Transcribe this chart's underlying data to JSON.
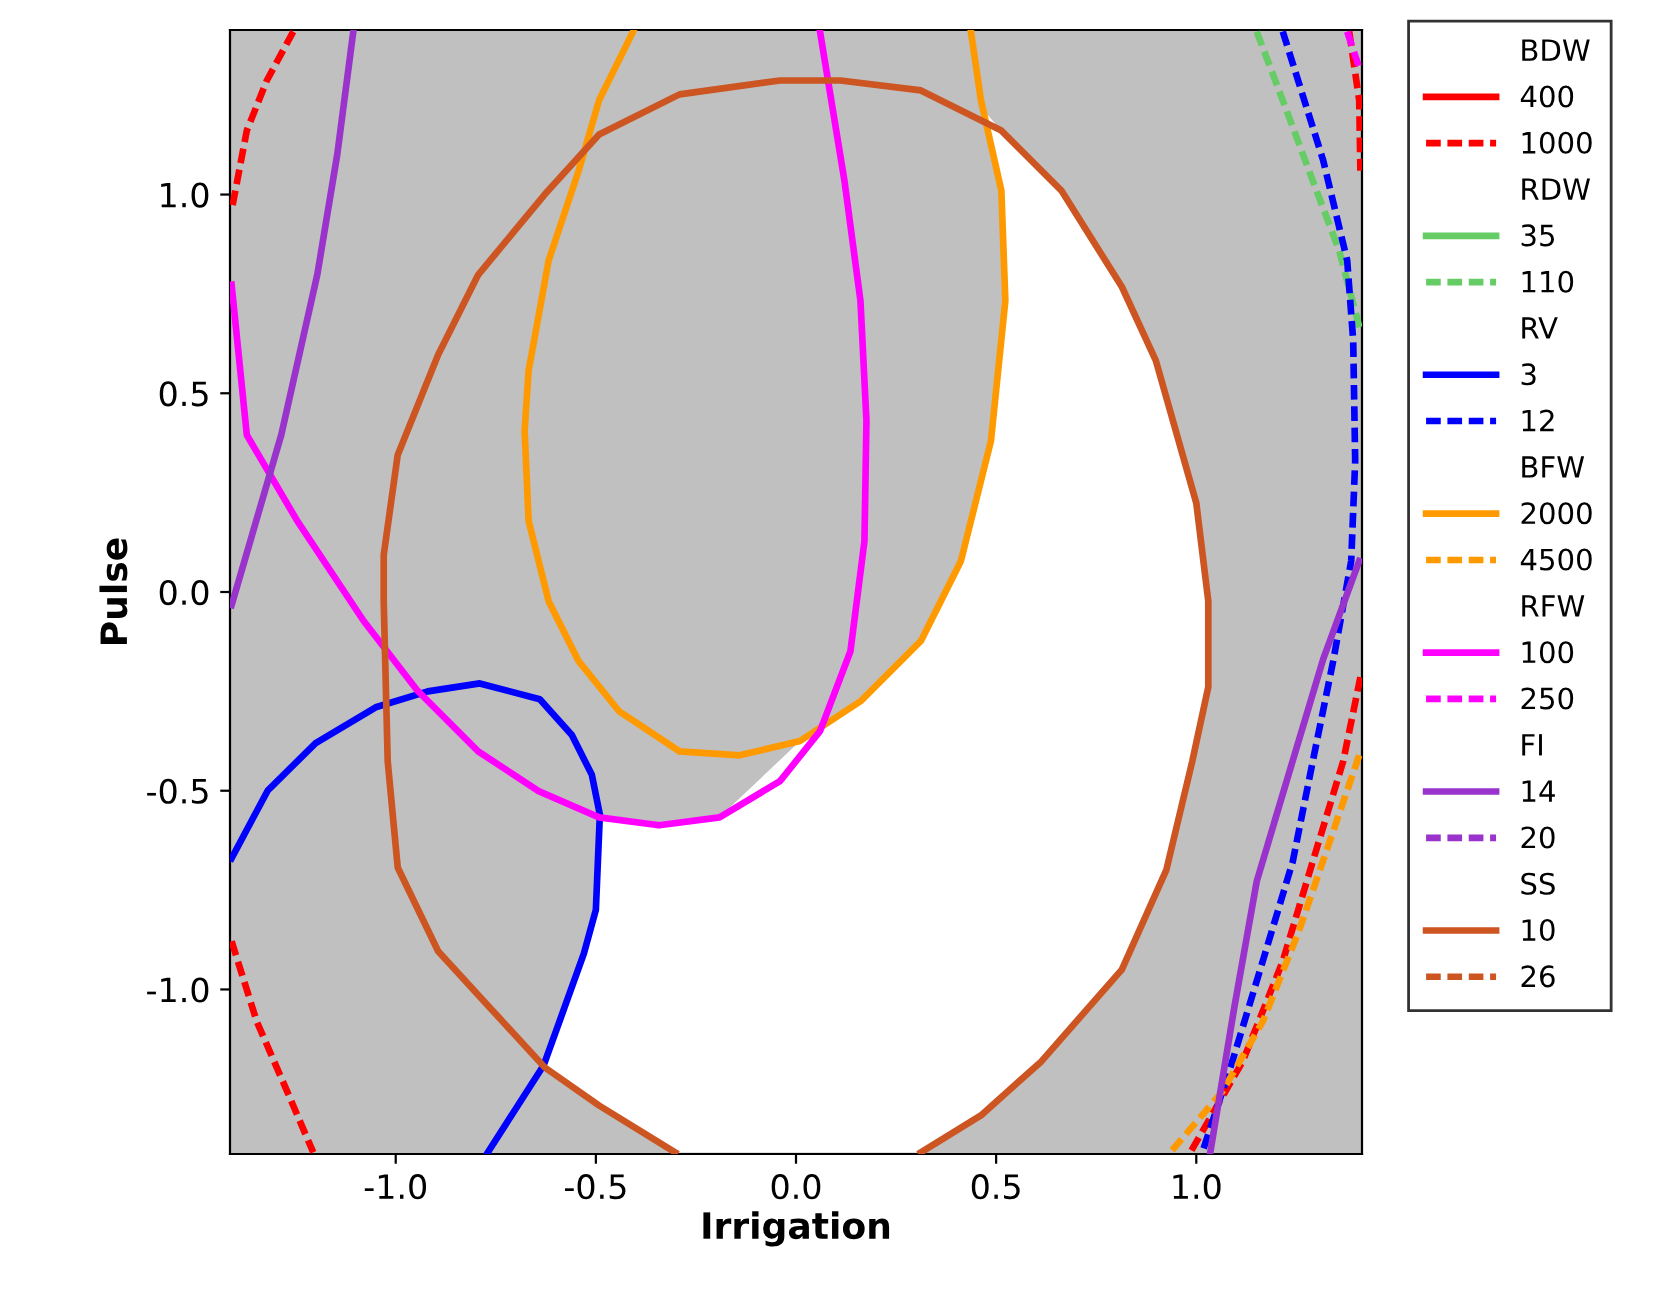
{
  "chart_data": {
    "type": "line",
    "xlabel": "Irrigation",
    "ylabel": "Pulse",
    "xlim": [
      -1.414,
      1.414
    ],
    "ylim": [
      -1.414,
      1.414
    ],
    "xticks": [
      {
        "value": -1.0,
        "label": "-1.0"
      },
      {
        "value": -0.5,
        "label": "-0.5"
      },
      {
        "value": 0.0,
        "label": "0.0"
      },
      {
        "value": 0.5,
        "label": "0.5"
      },
      {
        "value": 1.0,
        "label": "1.0"
      }
    ],
    "yticks": [
      {
        "value": -1.0,
        "label": "-1.0"
      },
      {
        "value": -0.5,
        "label": "-0.5"
      },
      {
        "value": 0.0,
        "label": "0.0"
      },
      {
        "value": 0.5,
        "label": "0.5"
      },
      {
        "value": 1.0,
        "label": "1.0"
      }
    ],
    "grid": false,
    "legend": "right",
    "marker": "none",
    "annotations": [
      "BDW",
      "RDW",
      "RV",
      "BFW",
      "RFW",
      "FI",
      "SS"
    ],
    "series": [
      {
        "type": "area",
        "color": "#ffffff",
        "x": [
          0.47,
          0.513,
          0.523,
          0.487,
          0.412,
          0.312,
          0.161,
          0.01,
          -0.191,
          -0.342,
          -0.492,
          -0.497,
          -0.528,
          -0.633,
          -0.492,
          -0.302,
          0.312,
          0.462,
          0.613,
          0.814,
          0.925,
          0.99,
          1.03,
          1.03,
          1.0,
          0.899,
          0.814,
          0.663,
          0.513
        ],
        "values": [
          1.21,
          1.01,
          0.733,
          0.38,
          0.078,
          -0.123,
          -0.275,
          -0.375,
          -0.567,
          -0.587,
          -0.567,
          -0.8,
          -0.91,
          -1.196,
          -1.292,
          -1.41,
          -1.41,
          -1.317,
          -1.181,
          -0.95,
          -0.7,
          -0.426,
          -0.239,
          -0.023,
          0.224,
          0.582,
          0.768,
          1.01,
          1.161
        ]
      },
      {
        "name": "400",
        "color": "#ff0000",
        "line_style": "solid"
      },
      {
        "name": "1000",
        "color": "#ff0000",
        "line_style": "dashed",
        "x": [
          -1.256,
          -1.322,
          -1.372,
          -1.41,
          null,
          -1.41,
          -1.347,
          -1.271,
          -1.206,
          null,
          1.382,
          1.407,
          1.41,
          null,
          1.41,
          1.367,
          1.291,
          1.216,
          1.116,
          0.985
        ],
        "values": [
          1.41,
          1.287,
          1.161,
          0.96,
          null,
          -0.879,
          -1.081,
          -1.257,
          -1.41,
          null,
          1.41,
          1.237,
          1.06,
          null,
          -0.214,
          -0.426,
          -0.678,
          -0.929,
          -1.181,
          -1.41
        ]
      },
      {
        "name": "35",
        "color": "#66cc66",
        "line_style": "solid"
      },
      {
        "name": "110",
        "color": "#66cc66",
        "line_style": "dashed",
        "x": [
          1.151,
          1.216,
          1.291,
          1.357,
          1.41
        ],
        "values": [
          1.41,
          1.237,
          1.035,
          0.859,
          0.657
        ]
      },
      {
        "name": "3",
        "color": "#0000ff",
        "line_style": "solid",
        "x": [
          -1.41,
          -1.32,
          -1.2,
          -1.05,
          -0.92,
          -0.79,
          -0.64,
          -0.56,
          -0.51,
          -0.49,
          -0.5,
          -0.53,
          -0.63,
          -0.77
        ],
        "values": [
          -0.67,
          -0.5,
          -0.38,
          -0.29,
          -0.25,
          -0.23,
          -0.27,
          -0.36,
          -0.46,
          -0.56,
          -0.8,
          -0.91,
          -1.19,
          -1.41
        ]
      },
      {
        "name": "12",
        "color": "#0000ff",
        "line_style": "dashed",
        "x": [
          1.216,
          1.317,
          1.377,
          1.392,
          1.397,
          1.387,
          1.342,
          1.291,
          1.241,
          1.166,
          1.09,
          1.015
        ],
        "values": [
          1.41,
          1.086,
          0.834,
          0.633,
          0.33,
          0.078,
          -0.174,
          -0.426,
          -0.678,
          -0.929,
          -1.181,
          -1.41
        ]
      },
      {
        "name": "2000",
        "color": "#ff9900",
        "line_style": "solid",
        "x": [
          -0.407,
          -0.492,
          -0.543,
          -0.618,
          -0.668,
          -0.678,
          -0.668,
          -0.618,
          -0.543,
          -0.442,
          -0.291,
          -0.141,
          0.01,
          0.161,
          0.312,
          0.412,
          0.487,
          0.523,
          0.513,
          0.462,
          0.437
        ],
        "values": [
          1.41,
          1.237,
          1.06,
          0.834,
          0.557,
          0.406,
          0.179,
          -0.023,
          -0.174,
          -0.3,
          -0.401,
          -0.411,
          -0.375,
          -0.275,
          -0.123,
          0.078,
          0.38,
          0.733,
          1.01,
          1.237,
          1.41
        ]
      },
      {
        "name": "4500",
        "color": "#ff9900",
        "line_style": "dashed",
        "x": [
          1.407,
          1.342,
          1.256,
          1.166,
          1.065,
          0.935
        ],
        "values": [
          -0.411,
          -0.602,
          -0.854,
          -1.081,
          -1.257,
          -1.41
        ]
      },
      {
        "name": "100",
        "color": "#ff00ff",
        "line_style": "solid",
        "x": [
          -1.41,
          -1.372,
          -1.246,
          -1.08,
          -0.945,
          -0.794,
          -0.643,
          -0.492,
          -0.342,
          -0.191,
          -0.04,
          0.06,
          0.136,
          0.171,
          0.176,
          0.161,
          0.121,
          0.06
        ],
        "values": [
          0.773,
          0.395,
          0.179,
          -0.073,
          -0.249,
          -0.401,
          -0.501,
          -0.567,
          -0.587,
          -0.567,
          -0.476,
          -0.35,
          -0.149,
          0.128,
          0.431,
          0.733,
          1.035,
          1.41
        ]
      },
      {
        "name": "250",
        "color": "#ff00ff",
        "line_style": "dashed",
        "x": [
          1.377,
          1.41
        ],
        "values": [
          1.41,
          1.31
        ]
      },
      {
        "name": "14",
        "color": "#9933cc",
        "line_style": "solid",
        "x": [
          -1.41,
          -1.286,
          -1.196,
          -1.146,
          -1.106,
          null,
          1.407,
          1.317,
          1.206,
          1.151,
          1.095,
          1.035
        ],
        "values": [
          -0.033,
          0.395,
          0.798,
          1.101,
          1.41,
          null,
          0.078,
          -0.169,
          -0.542,
          -0.728,
          -1.045,
          -1.41
        ]
      },
      {
        "name": "20",
        "color": "#9933cc",
        "line_style": "dashed"
      },
      {
        "name": "10",
        "color": "#cc5522",
        "line_style": "solid",
        "x": [
          -0.302,
          -0.492,
          -0.628,
          -0.779,
          -0.894,
          -0.995,
          -1.02,
          -1.03,
          -1.03,
          -0.995,
          -0.894,
          -0.794,
          -0.628,
          -0.492,
          -0.291,
          -0.04,
          0.111,
          0.312,
          0.513,
          0.663,
          0.814,
          0.899,
          1.0,
          1.03,
          1.03,
          0.99,
          0.925,
          0.814,
          0.613,
          0.462,
          0.312
        ],
        "values": [
          -1.41,
          -1.292,
          -1.196,
          -1.03,
          -0.904,
          -0.693,
          -0.426,
          -0.023,
          0.093,
          0.345,
          0.597,
          0.798,
          1.0,
          1.151,
          1.252,
          1.287,
          1.287,
          1.262,
          1.161,
          1.01,
          0.768,
          0.582,
          0.224,
          -0.023,
          -0.239,
          -0.426,
          -0.7,
          -0.95,
          -1.181,
          -1.317,
          -1.41
        ]
      },
      {
        "name": "26",
        "color": "#cc5522",
        "line_style": "dashed"
      }
    ]
  }
}
